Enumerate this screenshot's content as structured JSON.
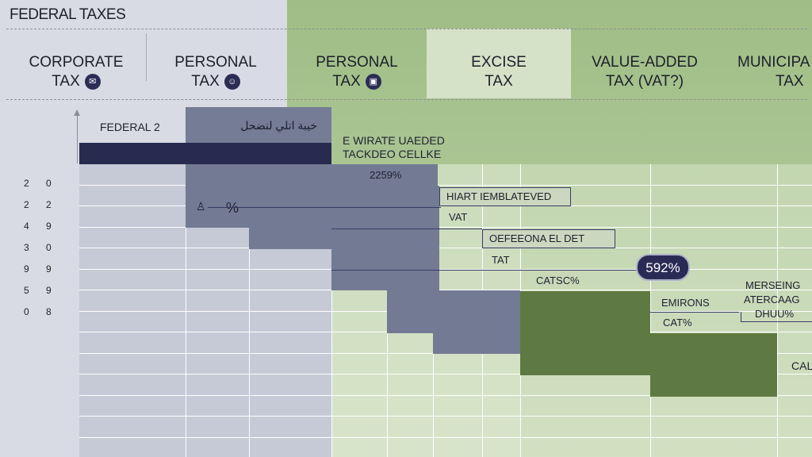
{
  "header": {
    "title": "FEDERAL TAXES"
  },
  "categories": [
    {
      "line1": "CORPORATE",
      "line2": "TAX",
      "icon": "briefcase-icon",
      "glyph": "✉"
    },
    {
      "line1": "PERSONAL",
      "line2": "TAX",
      "icon": "person-icon",
      "glyph": "☺"
    },
    {
      "line1": "PERSONAL",
      "line2": "TAX",
      "icon": "building-icon",
      "glyph": "▣"
    },
    {
      "line1": "EXCISE",
      "line2": "TAX",
      "icon": "",
      "glyph": ""
    },
    {
      "line1": "VALUE-ADDED",
      "line2": "TAX (VAT?)",
      "icon": "",
      "glyph": ""
    },
    {
      "line1": "MUNICIPA",
      "line2": "TAX",
      "icon": "",
      "glyph": ""
    }
  ],
  "chart_data": {
    "type": "bar",
    "y_tick_labels": [
      [
        "2",
        "0"
      ],
      [
        "2",
        "2"
      ],
      [
        "4",
        "9"
      ],
      [
        "3",
        "0"
      ],
      [
        "9",
        "9"
      ],
      [
        "5",
        "9"
      ],
      [
        "0",
        "8"
      ]
    ],
    "column_headers": {
      "left": "FEDERAL 2",
      "arabic": "خيبة اتلي لنضحل"
    },
    "annotations": {
      "wirate_line1": "E WIRATE UAEDED",
      "wirate_line2": "TACKDEO CELLKE",
      "pct_2259": "2259%",
      "icon_pct": "%",
      "hiart": "HIART IEMBLATEVED",
      "vat": "VAT",
      "oefeeona": "OEFEEONA EL DET",
      "tat": "TAT",
      "pill": "592%",
      "catsc": "CATSC%",
      "emirons": "EMIRONS",
      "cat_pct": "CAT%",
      "mersing_1": "MERSEING",
      "mersing_2": "ATERCAAG",
      "mersing_3": "DHUU%",
      "cal": "CAL"
    },
    "colors": {
      "navy": "#262b4f",
      "slate": "#737b94",
      "olive": "#5e7a42",
      "green_bg": "#a4c08a",
      "grey_bg": "#d7d9e2"
    }
  }
}
